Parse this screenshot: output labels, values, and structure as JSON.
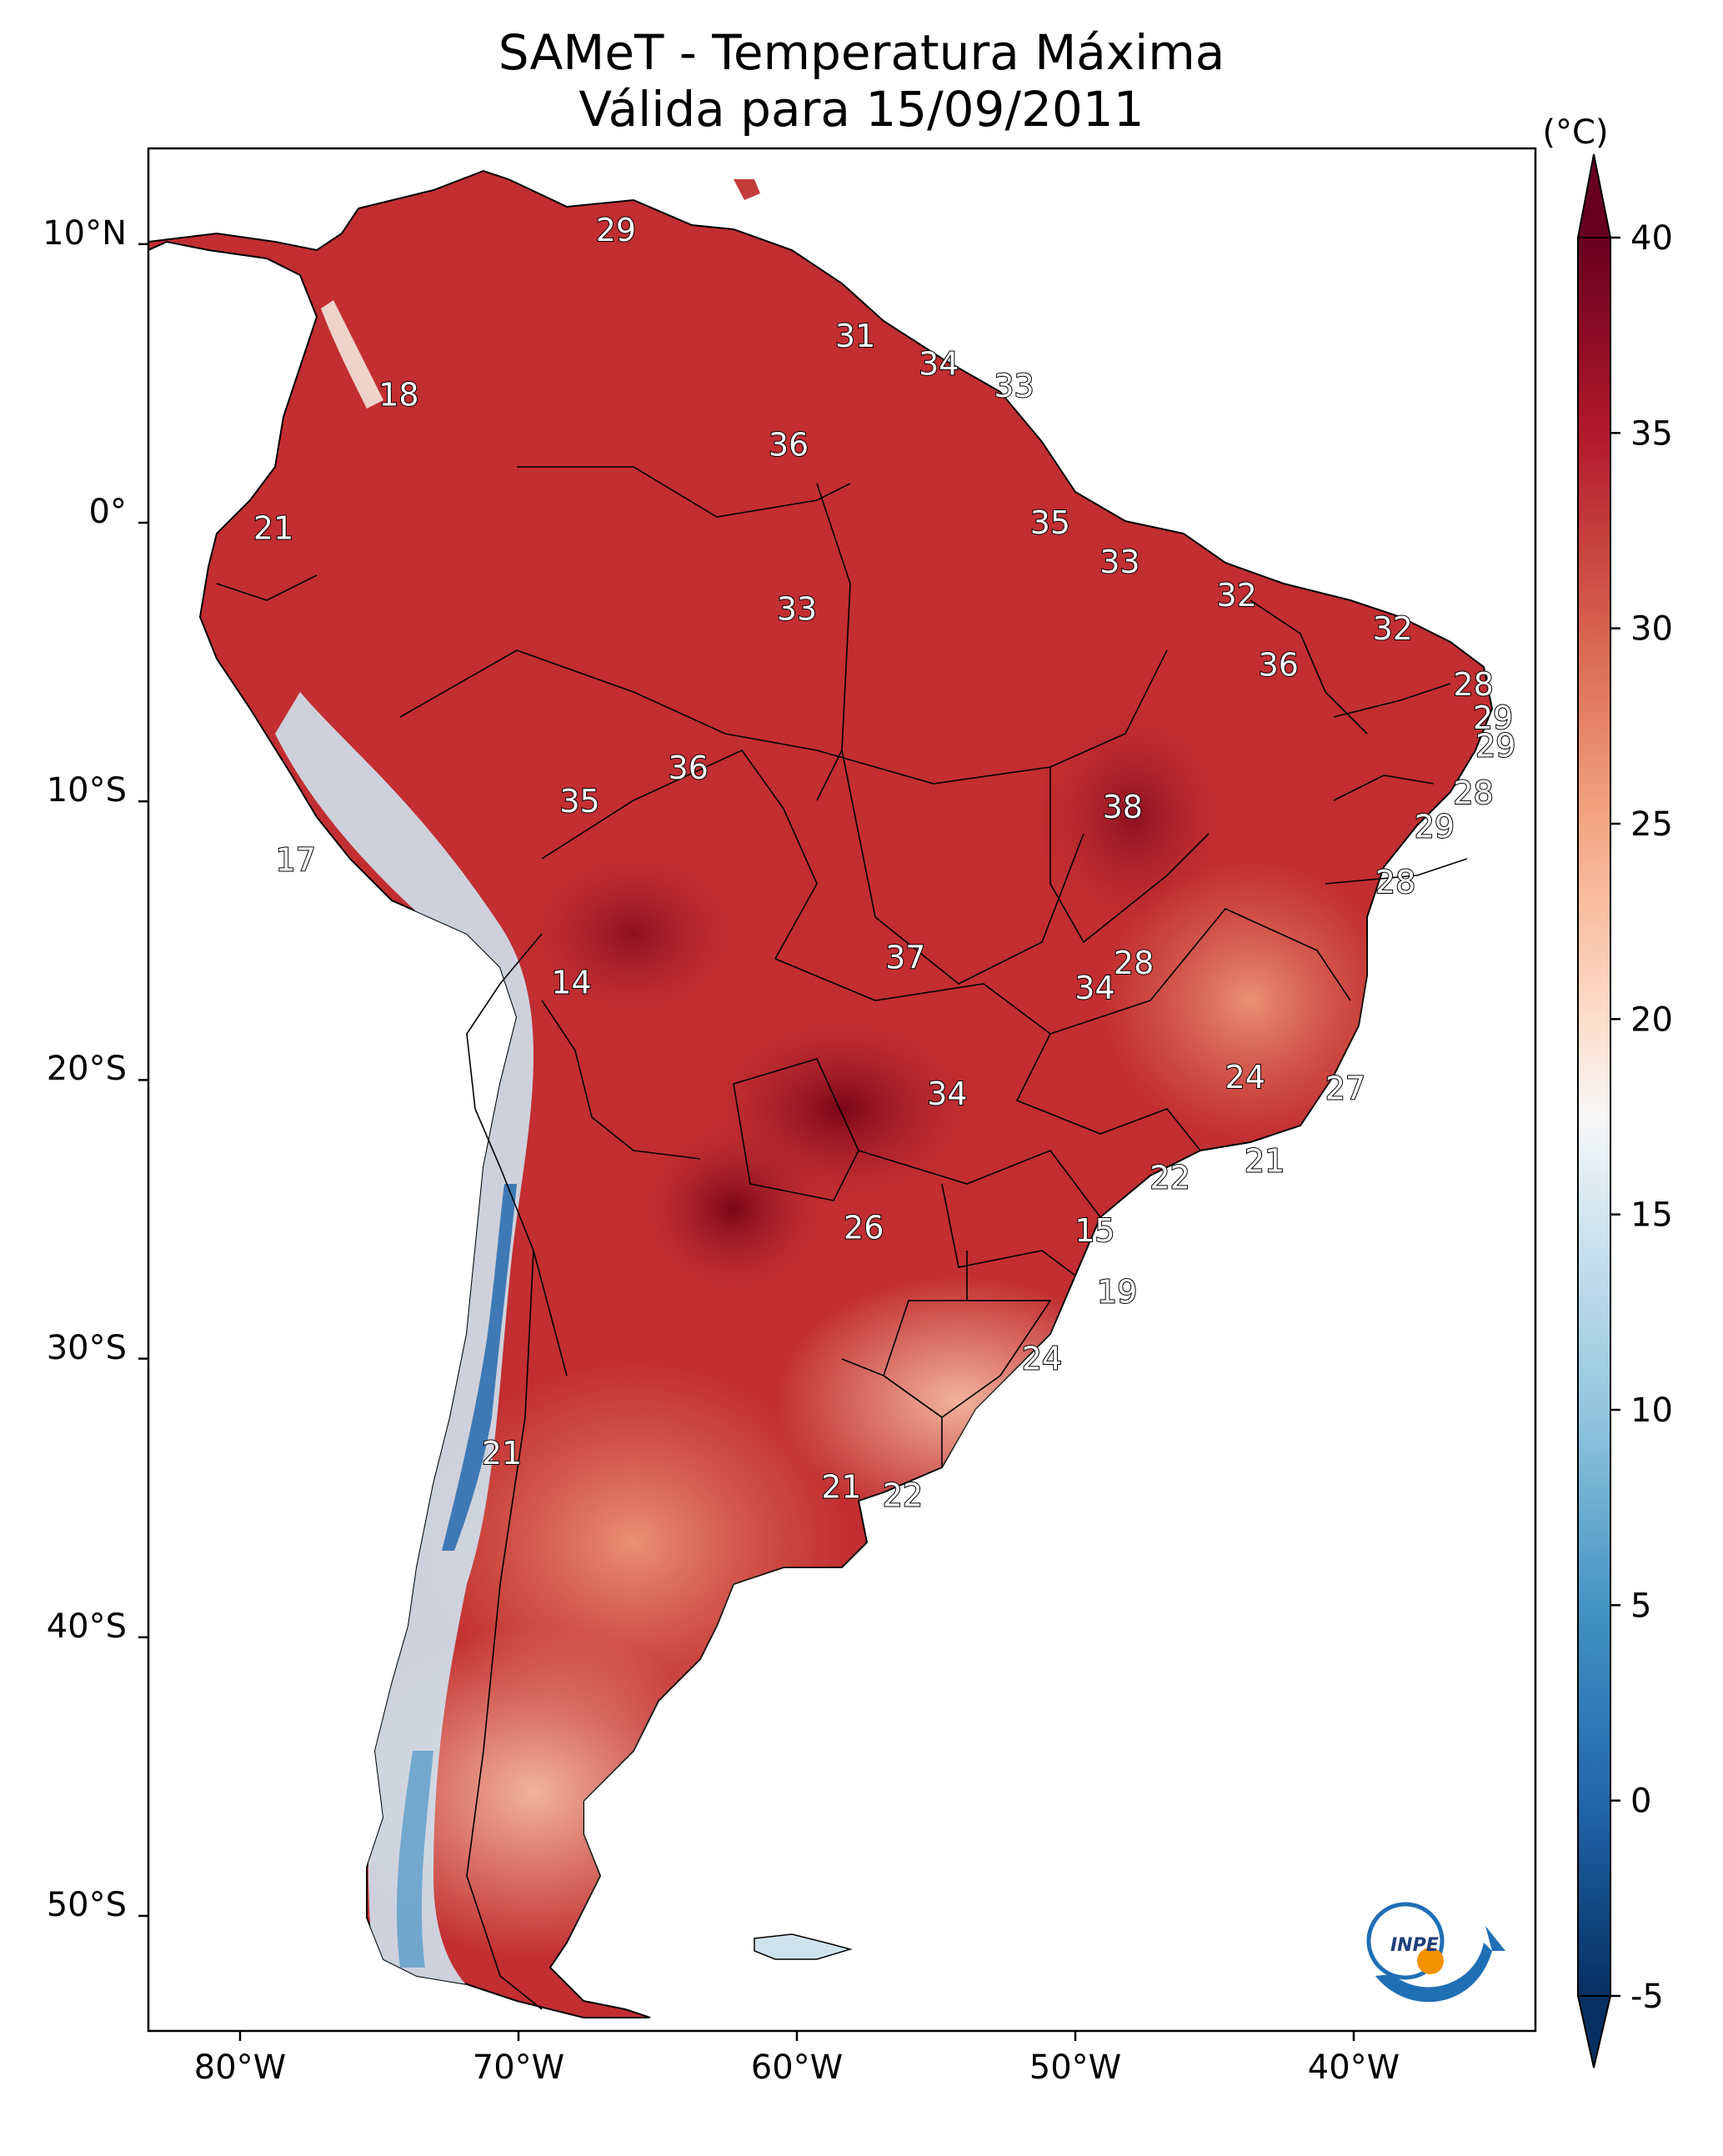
{
  "title_line1": "SAMeT - Temperatura Máxima",
  "title_line2": "Válida para 15/09/2011",
  "colorbar": {
    "unit": "(°C)",
    "ticks": [
      "40",
      "35",
      "30",
      "25",
      "20",
      "15",
      "10",
      "5",
      "0",
      "-5"
    ],
    "range": [
      -5,
      40
    ],
    "palette": "RdBu_r"
  },
  "axes": {
    "lat_labels": [
      "10°N",
      "0°",
      "10°S",
      "20°S",
      "30°S",
      "40°S",
      "50°S"
    ],
    "lon_labels": [
      "80°W",
      "70°W",
      "60°W",
      "50°W",
      "40°W"
    ]
  },
  "logo_text": "INPE",
  "station_labels": [
    {
      "v": "29",
      "lon": -66.5,
      "lat": 10.5
    },
    {
      "v": "18",
      "lon": -74.3,
      "lat": 4.6
    },
    {
      "v": "31",
      "lon": -57.9,
      "lat": 6.7
    },
    {
      "v": "34",
      "lon": -54.9,
      "lat": 5.7
    },
    {
      "v": "33",
      "lon": -52.2,
      "lat": 4.9
    },
    {
      "v": "36",
      "lon": -60.3,
      "lat": 2.8
    },
    {
      "v": "21",
      "lon": -78.8,
      "lat": -0.2
    },
    {
      "v": "35",
      "lon": -50.9,
      "lat": 0.0
    },
    {
      "v": "33",
      "lon": -48.4,
      "lat": -1.4
    },
    {
      "v": "32",
      "lon": -44.2,
      "lat": -2.6
    },
    {
      "v": "32",
      "lon": -38.6,
      "lat": -3.8
    },
    {
      "v": "33",
      "lon": -60.0,
      "lat": -3.1
    },
    {
      "v": "36",
      "lon": -42.7,
      "lat": -5.1
    },
    {
      "v": "28",
      "lon": -35.7,
      "lat": -5.8
    },
    {
      "v": "29",
      "lon": -35.0,
      "lat": -7.0
    },
    {
      "v": "29",
      "lon": -34.9,
      "lat": -8.0
    },
    {
      "v": "36",
      "lon": -63.9,
      "lat": -8.8
    },
    {
      "v": "35",
      "lon": -67.8,
      "lat": -10.0
    },
    {
      "v": "38",
      "lon": -48.3,
      "lat": -10.2
    },
    {
      "v": "28",
      "lon": -35.7,
      "lat": -9.7
    },
    {
      "v": "29",
      "lon": -37.1,
      "lat": -10.9
    },
    {
      "v": "17",
      "lon": -78.0,
      "lat": -12.1
    },
    {
      "v": "28",
      "lon": -38.5,
      "lat": -12.9
    },
    {
      "v": "37",
      "lon": -56.1,
      "lat": -15.6
    },
    {
      "v": "28",
      "lon": -47.9,
      "lat": -15.8
    },
    {
      "v": "34",
      "lon": -49.3,
      "lat": -16.7
    },
    {
      "v": "14",
      "lon": -68.1,
      "lat": -16.5
    },
    {
      "v": "24",
      "lon": -43.9,
      "lat": -19.9
    },
    {
      "v": "27",
      "lon": -40.3,
      "lat": -20.3
    },
    {
      "v": "34",
      "lon": -54.6,
      "lat": -20.5
    },
    {
      "v": "21",
      "lon": -43.2,
      "lat": -22.9
    },
    {
      "v": "22",
      "lon": -46.6,
      "lat": -23.5
    },
    {
      "v": "26",
      "lon": -57.6,
      "lat": -25.3
    },
    {
      "v": "15",
      "lon": -49.3,
      "lat": -25.4
    },
    {
      "v": "19",
      "lon": -48.5,
      "lat": -27.6
    },
    {
      "v": "24",
      "lon": -51.2,
      "lat": -30.0
    },
    {
      "v": "21",
      "lon": -70.6,
      "lat": -33.4
    },
    {
      "v": "21",
      "lon": -58.4,
      "lat": -34.6
    },
    {
      "v": "22",
      "lon": -56.2,
      "lat": -34.9
    }
  ]
}
